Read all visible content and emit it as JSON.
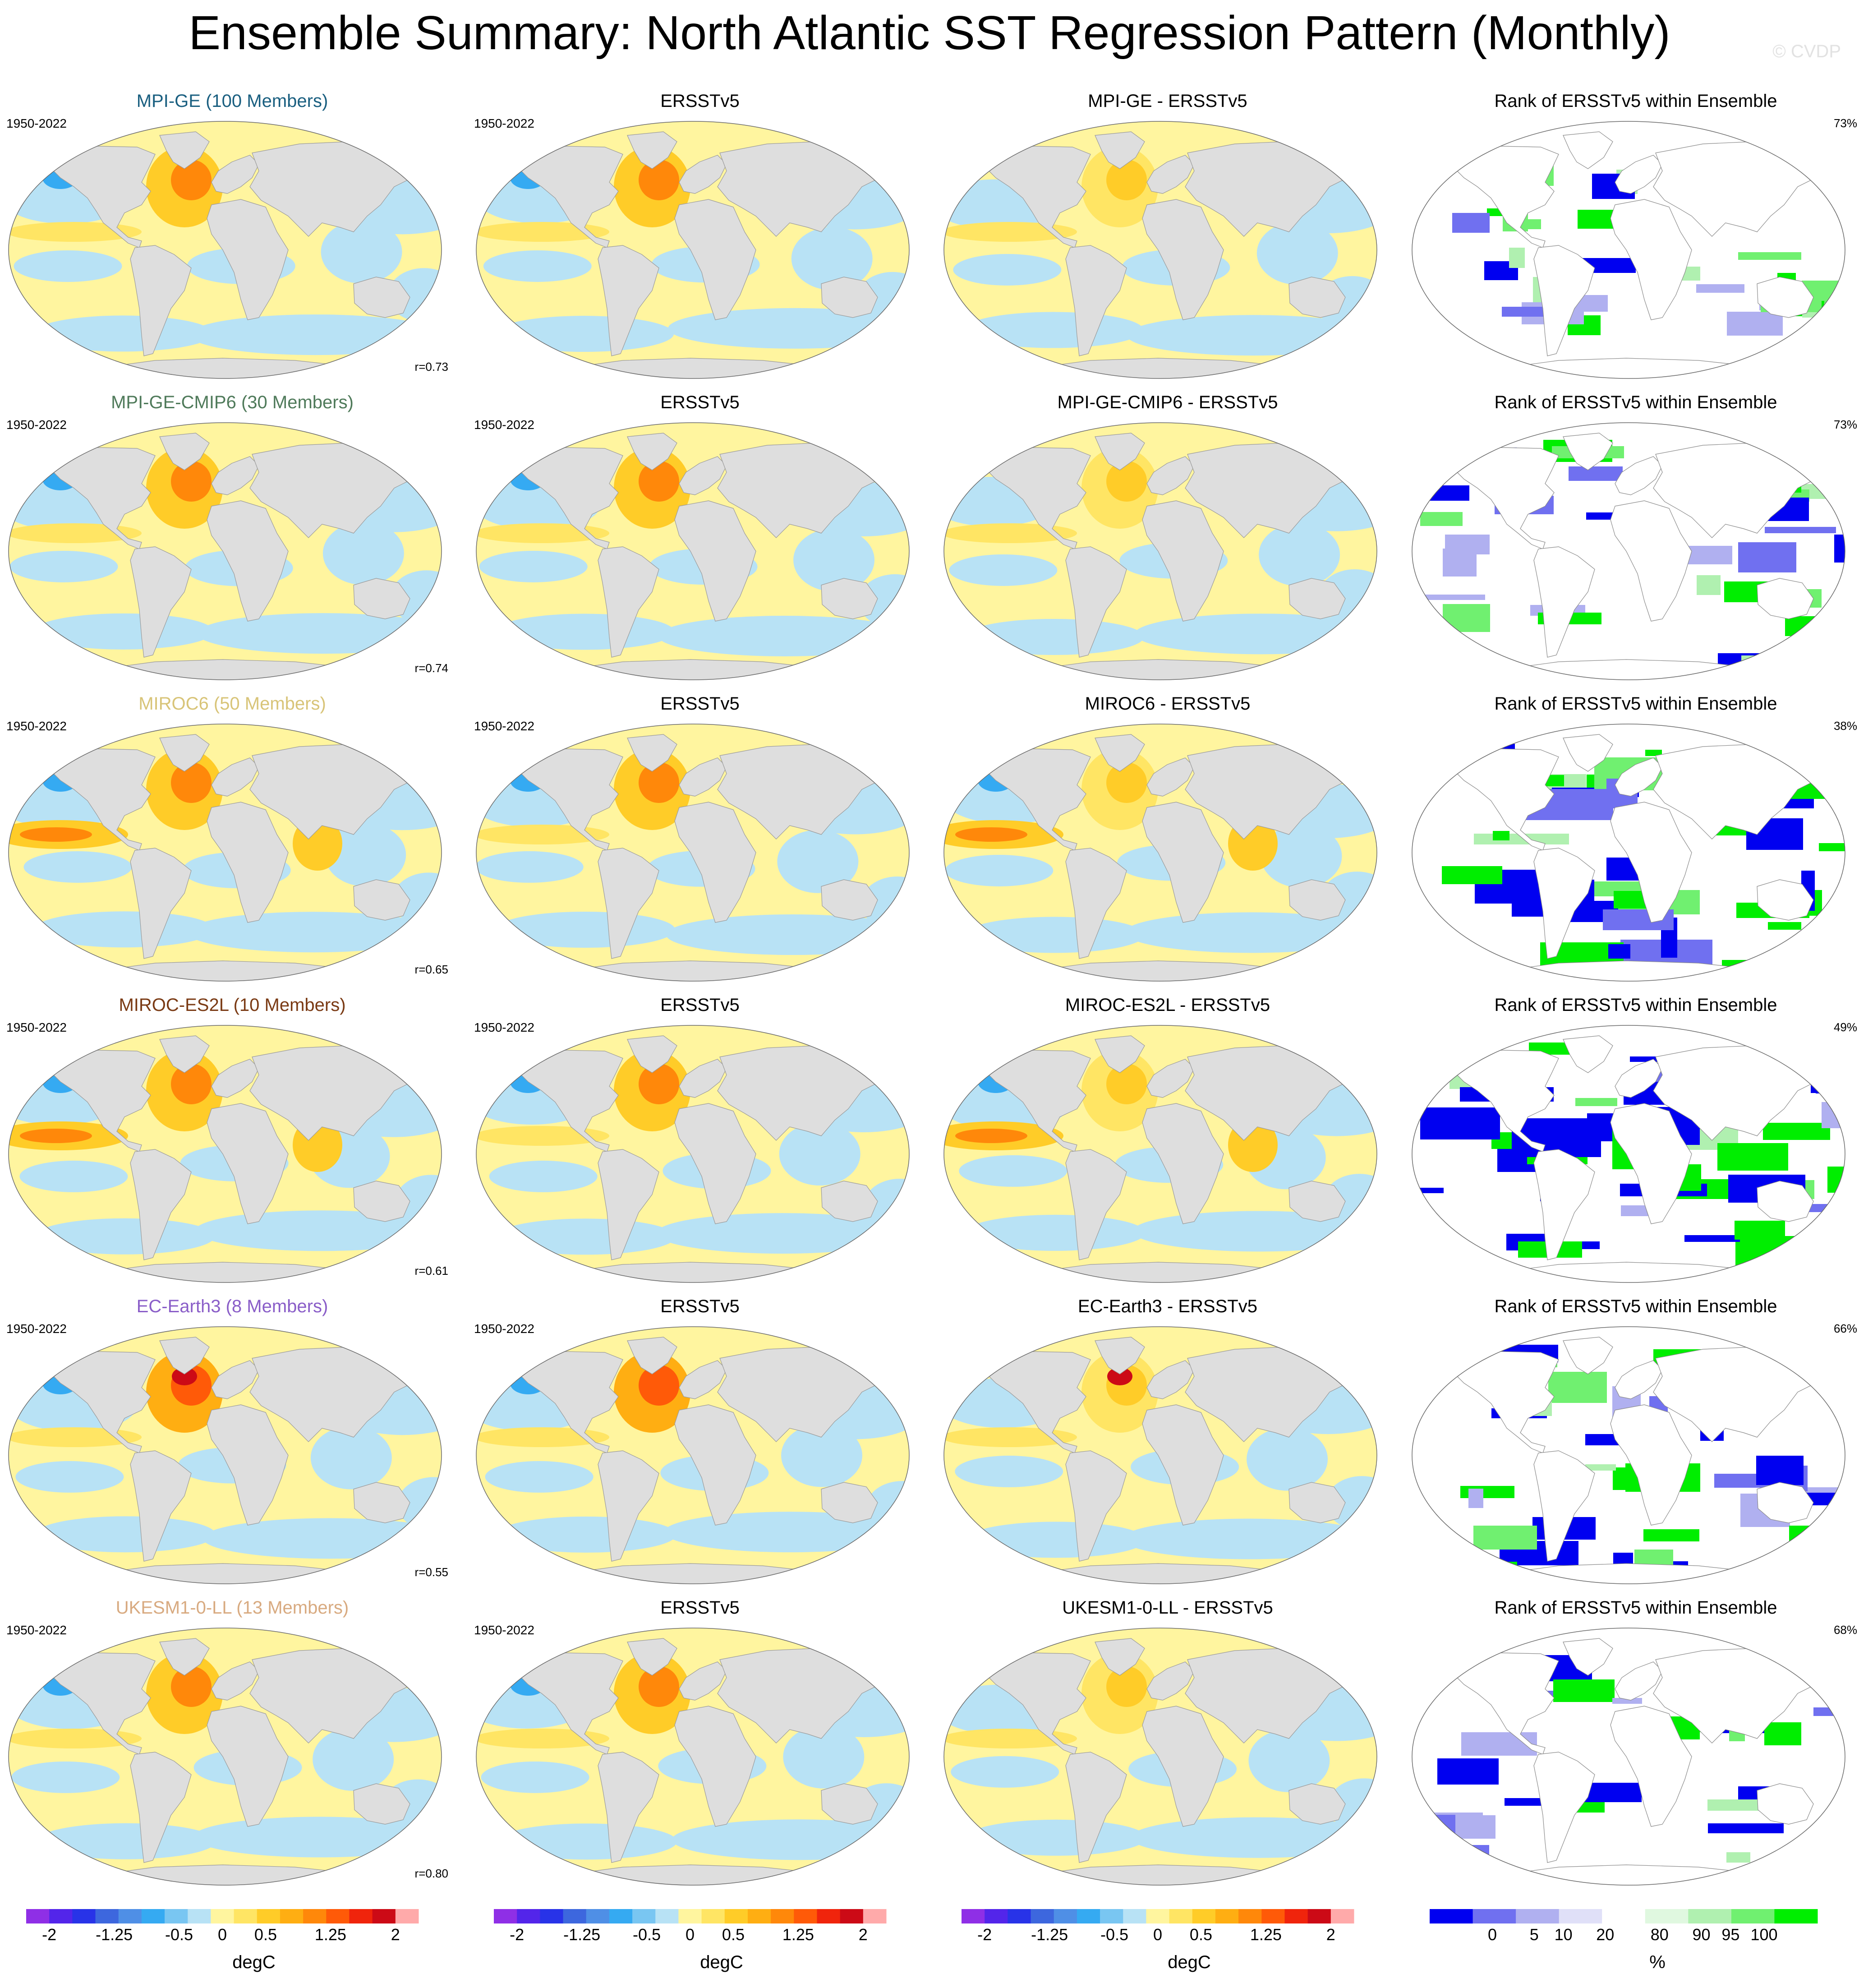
{
  "title": "Ensemble Summary: North Atlantic SST Regression Pattern (Monthly)",
  "watermark": "© CVDP",
  "colors": {
    "land": "#dedede",
    "ocean_default": "#fff59f",
    "diverging": [
      "#8f2fe6",
      "#5325ea",
      "#2833e8",
      "#3d67de",
      "#4f8fe6",
      "#35aaf2",
      "#79c6f2",
      "#b8e2f5",
      "#fff59f",
      "#ffe564",
      "#ffcc28",
      "#ffae12",
      "#ff880a",
      "#ff5a08",
      "#f0240c",
      "#cc0a16",
      "#ffaaaa"
    ],
    "rank": [
      "#0000f0",
      "#7070f0",
      "#b0b0f0",
      "#e0e0f8",
      "#ffffff",
      "#e0f8e0",
      "#b0f0b0",
      "#70f070",
      "#00ee00"
    ]
  },
  "rows": [
    {
      "model": "MPI-GE (100 Members)",
      "model_color": "#1a5f80",
      "diff_title": "MPI-GE - ERSSTv5",
      "corr": "r=0.73",
      "pct": "73%",
      "variant": 0
    },
    {
      "model": "MPI-GE-CMIP6 (30 Members)",
      "model_color": "#4f7a5a",
      "diff_title": "MPI-GE-CMIP6 - ERSSTv5",
      "corr": "r=0.74",
      "pct": "73%",
      "variant": 1
    },
    {
      "model": "MIROC6 (50 Members)",
      "model_color": "#d8c478",
      "diff_title": "MIROC6 - ERSSTv5",
      "corr": "r=0.65",
      "pct": "38%",
      "variant": 2
    },
    {
      "model": "MIROC-ES2L (10 Members)",
      "model_color": "#7a3a14",
      "diff_title": "MIROC-ES2L - ERSSTv5",
      "corr": "r=0.61",
      "pct": "49%",
      "variant": 3
    },
    {
      "model": "EC-Earth3 (8 Members)",
      "model_color": "#8a5ec8",
      "diff_title": "EC-Earth3 - ERSSTv5",
      "corr": "r=0.55",
      "pct": "66%",
      "variant": 4
    },
    {
      "model": "UKESM1-0-LL (13 Members)",
      "model_color": "#d8aa80",
      "diff_title": "UKESM1-0-LL - ERSSTv5",
      "corr": "r=0.80",
      "pct": "68%",
      "variant": 5
    }
  ],
  "obs_title": "ERSSTv5",
  "period": "1950-2022",
  "rank_title": "Rank of ERSSTv5 within Ensemble",
  "colorbar_sst": {
    "ticks": [
      "-2",
      "-1.25",
      "-0.5",
      "0",
      "0.5",
      "1.25",
      "2"
    ],
    "tick_values": [
      -2,
      -1.25,
      -0.5,
      0,
      0.5,
      1.25,
      2
    ],
    "unit": "degC"
  },
  "colorbar_rank": {
    "ticks": [
      "0",
      "5",
      "10",
      "20",
      "%",
      "80",
      "90",
      "95",
      "100"
    ],
    "unit": "%"
  }
}
